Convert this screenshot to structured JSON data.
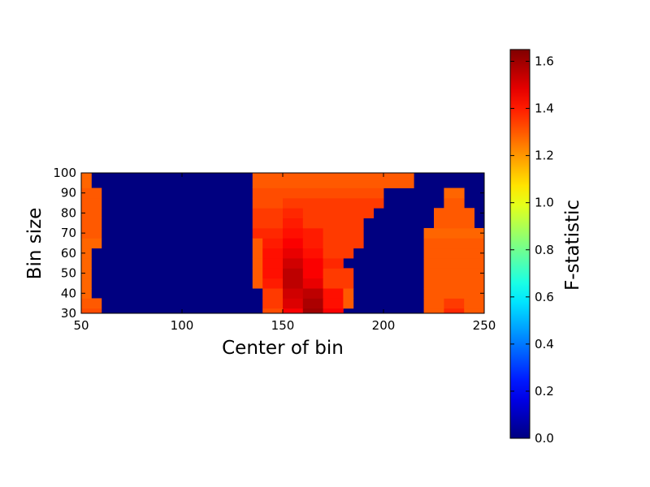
{
  "chart_data": {
    "type": "heatmap",
    "title": "",
    "xlabel": "Center of bin",
    "ylabel": "Bin size",
    "xlim": [
      50,
      250
    ],
    "ylim": [
      30,
      100
    ],
    "x_ticks": [
      50,
      100,
      150,
      200,
      250
    ],
    "y_ticks": [
      30,
      40,
      50,
      60,
      70,
      80,
      90,
      100
    ],
    "x_step": 5,
    "y_step": 5,
    "colormap": "jet",
    "colorbar": {
      "label": "F-statistic",
      "range": [
        0.0,
        1.65
      ],
      "ticks": [
        "0.0",
        "0.2",
        "0.4",
        "0.6",
        "0.8",
        "1.0",
        "1.2",
        "1.4",
        "1.6"
      ]
    },
    "rows": [
      {
        "y": 30,
        "runs": [
          [
            50,
            60,
            1.32
          ],
          [
            140,
            150,
            1.32
          ],
          [
            150,
            160,
            1.45
          ],
          [
            160,
            170,
            1.6
          ],
          [
            170,
            180,
            1.45
          ],
          [
            220,
            230,
            1.3
          ],
          [
            230,
            240,
            1.38
          ],
          [
            240,
            250,
            1.3
          ]
        ]
      },
      {
        "y": 35,
        "runs": [
          [
            50,
            60,
            1.3
          ],
          [
            140,
            150,
            1.35
          ],
          [
            150,
            160,
            1.5
          ],
          [
            160,
            170,
            1.58
          ],
          [
            170,
            180,
            1.42
          ],
          [
            180,
            185,
            1.3
          ],
          [
            220,
            230,
            1.3
          ],
          [
            230,
            240,
            1.35
          ],
          [
            240,
            250,
            1.3
          ]
        ]
      },
      {
        "y": 40,
        "runs": [
          [
            50,
            55,
            1.28
          ],
          [
            140,
            150,
            1.35
          ],
          [
            150,
            160,
            1.52
          ],
          [
            160,
            170,
            1.55
          ],
          [
            170,
            180,
            1.42
          ],
          [
            180,
            185,
            1.3
          ],
          [
            220,
            250,
            1.3
          ]
        ]
      },
      {
        "y": 45,
        "runs": [
          [
            50,
            55,
            1.28
          ],
          [
            135,
            140,
            1.3
          ],
          [
            140,
            150,
            1.4
          ],
          [
            150,
            160,
            1.55
          ],
          [
            160,
            170,
            1.48
          ],
          [
            170,
            185,
            1.35
          ],
          [
            220,
            250,
            1.3
          ]
        ]
      },
      {
        "y": 50,
        "runs": [
          [
            50,
            55,
            1.28
          ],
          [
            135,
            140,
            1.3
          ],
          [
            140,
            150,
            1.42
          ],
          [
            150,
            160,
            1.55
          ],
          [
            160,
            170,
            1.45
          ],
          [
            170,
            185,
            1.35
          ],
          [
            220,
            250,
            1.3
          ]
        ]
      },
      {
        "y": 55,
        "runs": [
          [
            50,
            55,
            1.28
          ],
          [
            135,
            140,
            1.3
          ],
          [
            140,
            150,
            1.42
          ],
          [
            150,
            160,
            1.52
          ],
          [
            160,
            170,
            1.45
          ],
          [
            170,
            180,
            1.38
          ],
          [
            220,
            250,
            1.3
          ]
        ]
      },
      {
        "y": 60,
        "runs": [
          [
            50,
            55,
            1.28
          ],
          [
            135,
            140,
            1.3
          ],
          [
            140,
            150,
            1.42
          ],
          [
            150,
            160,
            1.48
          ],
          [
            160,
            170,
            1.42
          ],
          [
            170,
            185,
            1.35
          ],
          [
            220,
            250,
            1.3
          ]
        ]
      },
      {
        "y": 65,
        "runs": [
          [
            50,
            60,
            1.28
          ],
          [
            135,
            140,
            1.3
          ],
          [
            140,
            150,
            1.4
          ],
          [
            150,
            160,
            1.45
          ],
          [
            160,
            170,
            1.4
          ],
          [
            170,
            190,
            1.35
          ],
          [
            220,
            250,
            1.3
          ]
        ]
      },
      {
        "y": 70,
        "runs": [
          [
            50,
            60,
            1.3
          ],
          [
            135,
            150,
            1.38
          ],
          [
            150,
            160,
            1.42
          ],
          [
            160,
            170,
            1.4
          ],
          [
            170,
            190,
            1.35
          ],
          [
            220,
            250,
            1.28
          ]
        ]
      },
      {
        "y": 75,
        "runs": [
          [
            50,
            60,
            1.3
          ],
          [
            135,
            150,
            1.35
          ],
          [
            150,
            160,
            1.4
          ],
          [
            160,
            190,
            1.35
          ],
          [
            225,
            245,
            1.3
          ]
        ]
      },
      {
        "y": 80,
        "runs": [
          [
            50,
            60,
            1.3
          ],
          [
            135,
            150,
            1.35
          ],
          [
            150,
            160,
            1.38
          ],
          [
            160,
            195,
            1.35
          ],
          [
            225,
            245,
            1.3
          ]
        ]
      },
      {
        "y": 85,
        "runs": [
          [
            50,
            60,
            1.3
          ],
          [
            135,
            150,
            1.32
          ],
          [
            150,
            200,
            1.35
          ],
          [
            230,
            240,
            1.3
          ]
        ]
      },
      {
        "y": 90,
        "runs": [
          [
            50,
            60,
            1.3
          ],
          [
            135,
            200,
            1.32
          ],
          [
            230,
            240,
            1.28
          ]
        ]
      },
      {
        "y": 95,
        "runs": [
          [
            50,
            55,
            1.28
          ],
          [
            135,
            215,
            1.3
          ]
        ]
      },
      {
        "y": 100,
        "runs": [
          [
            50,
            55,
            1.28
          ],
          [
            135,
            215,
            1.3
          ]
        ]
      }
    ],
    "default_value": 0.0
  }
}
